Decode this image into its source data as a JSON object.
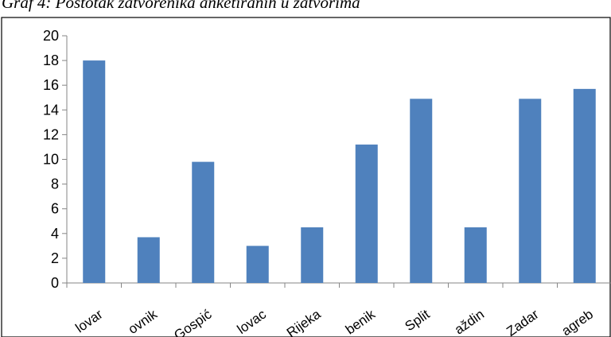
{
  "chart_data": {
    "type": "bar",
    "title": "Graf 4: Postotak zatvorenika anketiranih u zatvorima",
    "categories": [
      "Bjelovar",
      "Dubrovnik",
      "Gospić",
      "Karlovac",
      "Rijeka",
      "Šibenik",
      "Split",
      "Varaždin",
      "Zadar",
      "Zagreb"
    ],
    "visible_tick_labels": [
      "lovar",
      "ovnik",
      "Gospić",
      "lovac",
      "Rijeka",
      "benik",
      "Split",
      "aždin",
      "Zadar",
      "agreb"
    ],
    "values": [
      18.0,
      3.7,
      9.8,
      3.0,
      4.5,
      11.2,
      14.9,
      4.5,
      14.9,
      15.7
    ],
    "ylim": [
      0,
      20
    ],
    "yticks": [
      0,
      2,
      4,
      6,
      8,
      10,
      12,
      14,
      16,
      18,
      20
    ],
    "xlabel": "",
    "ylabel": "",
    "grid": false,
    "bar_color": "#4f81bd"
  }
}
